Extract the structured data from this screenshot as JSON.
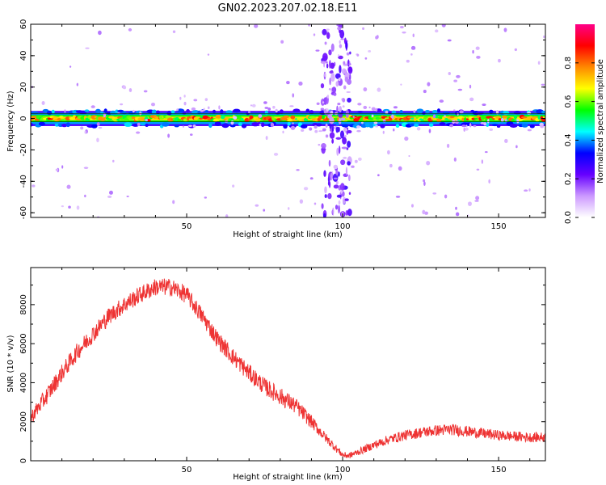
{
  "chart_data": [
    {
      "type": "heatmap",
      "title": "GN02.2023.207.02.18.E11",
      "xlabel": "Height of straight line (km)",
      "ylabel": "Frequency (Hz)",
      "xlim": [
        0,
        165
      ],
      "ylim": [
        -63,
        60
      ],
      "x_ticks": [
        50,
        100,
        150
      ],
      "y_ticks": [
        -60,
        -40,
        -20,
        0,
        20,
        40,
        60
      ],
      "colorbar": {
        "label": "Normalized spectral amplitude",
        "range": [
          0,
          1
        ],
        "ticks": [
          0.0,
          0.2,
          0.4,
          0.6,
          0.8
        ],
        "tick_labels": [
          "0.0",
          "0.2",
          "0.4",
          "0.6",
          "0.8"
        ],
        "colors": [
          "#ffffff",
          "#cc99ff",
          "#6600ff",
          "#0000ff",
          "#00ffff",
          "#00ff00",
          "#ffff00",
          "#ff8800",
          "#ff0000",
          "#ff0088"
        ]
      },
      "features": {
        "main_band": {
          "freq_center": 0,
          "freq_halfwidth": 3,
          "peak_amplitude": 0.9
        },
        "vertical_streak": {
          "x_center": 98,
          "amplitude": 0.2
        },
        "scatter_amplitude": 0.1
      }
    },
    {
      "type": "line",
      "xlabel": "Height of straight line (km)",
      "ylabel": "SNR (10 * v/v)",
      "xlim": [
        0,
        165
      ],
      "ylim": [
        0,
        9900
      ],
      "x_ticks": [
        50,
        100,
        150
      ],
      "y_ticks": [
        0,
        2000,
        4000,
        6000,
        8000
      ],
      "color": "#ee3333",
      "series": [
        {
          "x": [
            0,
            5,
            10,
            15,
            20,
            25,
            30,
            35,
            40,
            45,
            50,
            55,
            60,
            65,
            70,
            75,
            80,
            85,
            90,
            95,
            100,
            102,
            105,
            110,
            115,
            120,
            125,
            130,
            135,
            140,
            145,
            150,
            155,
            160,
            165
          ],
          "y": [
            2200,
            3300,
            4500,
            5600,
            6500,
            7400,
            8000,
            8500,
            8900,
            8900,
            8500,
            7400,
            6200,
            5300,
            4500,
            3800,
            3300,
            2800,
            2000,
            1100,
            300,
            250,
            450,
            800,
            1100,
            1300,
            1450,
            1550,
            1600,
            1500,
            1400,
            1300,
            1250,
            1200,
            1200
          ],
          "noise_amplitude": 450
        }
      ]
    }
  ]
}
